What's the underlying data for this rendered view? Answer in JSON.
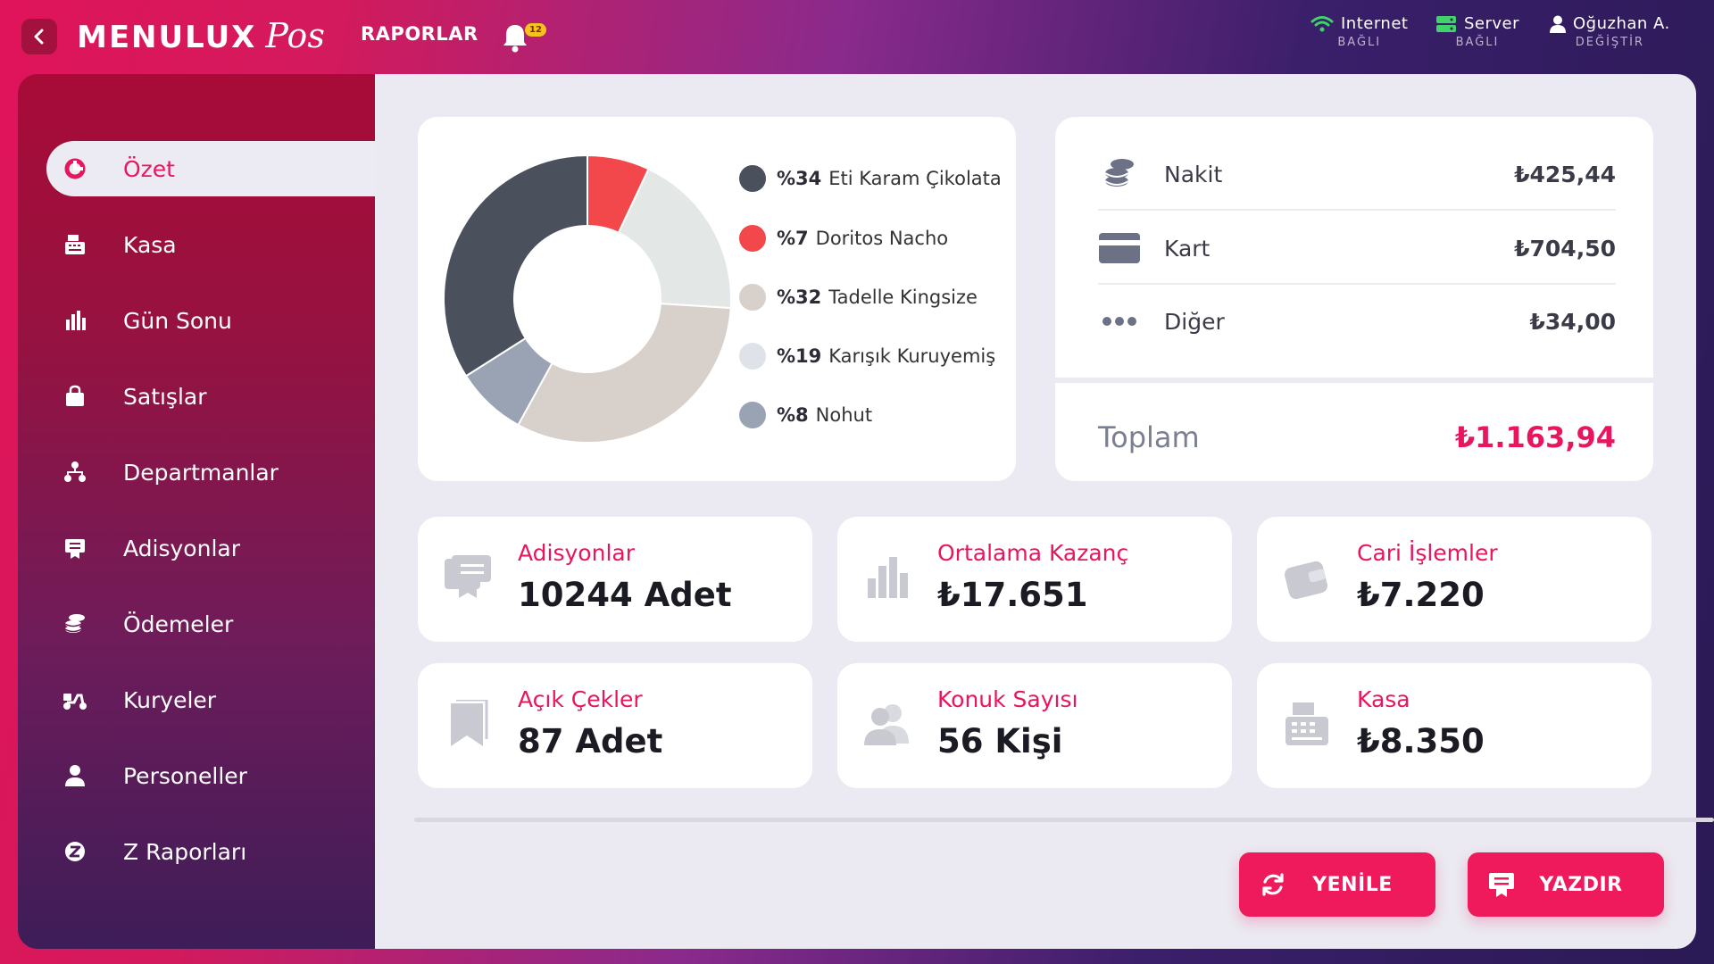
{
  "app": {
    "logo_main": "MENULUX",
    "logo_script": "Pos",
    "top_nav": "RAPORLAR",
    "notification_count": "12"
  },
  "status": {
    "internet": {
      "label": "Internet",
      "sub": "BAĞLI",
      "icon": "wifi-icon"
    },
    "server": {
      "label": "Server",
      "sub": "BAĞLI",
      "icon": "server-icon"
    },
    "user": {
      "label": "Oğuzhan A.",
      "sub": "DEĞİŞTİR",
      "icon": "user-icon"
    }
  },
  "sidebar": {
    "items": [
      {
        "label": "Özet",
        "icon": "pie-chart-icon",
        "active": true
      },
      {
        "label": "Kasa",
        "icon": "cash-register-icon"
      },
      {
        "label": "Gün Sonu",
        "icon": "bar-chart-icon"
      },
      {
        "label": "Satışlar",
        "icon": "shopping-bag-icon"
      },
      {
        "label": "Departmanlar",
        "icon": "sitemap-icon"
      },
      {
        "label": "Adisyonlar",
        "icon": "receipt-icon"
      },
      {
        "label": "Ödemeler",
        "icon": "coins-icon"
      },
      {
        "label": "Kuryeler",
        "icon": "scooter-icon"
      },
      {
        "label": "Personeller",
        "icon": "user-icon"
      },
      {
        "label": "Z Raporları",
        "icon": "z-report-icon"
      }
    ]
  },
  "chart_data": {
    "type": "pie",
    "categories": [
      "Eti Karam Çikolata",
      "Doritos Nacho",
      "Tadelle Kingsize",
      "Karışık Kuruyemiş",
      "Nohut"
    ],
    "values": [
      34,
      7,
      32,
      19,
      8
    ],
    "legend": [
      {
        "pct": "%34",
        "name": "Eti Karam Çikolata",
        "color": "#4a505c"
      },
      {
        "pct": "%7",
        "name": "Doritos Nacho",
        "color": "#f2474b"
      },
      {
        "pct": "%32",
        "name": "Tadelle Kingsize",
        "color": "#d7d0cb"
      },
      {
        "pct": "%19",
        "name": "Karışık Kuruyemiş",
        "color": "#dfe2e9"
      },
      {
        "pct": "%8",
        "name": "Nohut",
        "color": "#9aa3b4"
      }
    ],
    "slices_clockwise_from_top": [
      {
        "name": "Doritos Nacho",
        "value": 7,
        "color": "#f2474b"
      },
      {
        "name": "Karışık Kuruyemiş",
        "value": 19,
        "color": "#e3e7e6"
      },
      {
        "name": "Tadelle Kingsize",
        "value": 32,
        "color": "#d7d0cb"
      },
      {
        "name": "Nohut",
        "value": 8,
        "color": "#9aa3b4"
      },
      {
        "name": "Eti Karam Çikolata",
        "value": 34,
        "color": "#4a505c"
      }
    ],
    "donut": true,
    "legend_position": "right"
  },
  "payments": {
    "rows": [
      {
        "label": "Nakit",
        "value": "₺425,44",
        "icon": "coins-icon"
      },
      {
        "label": "Kart",
        "value": "₺704,50",
        "icon": "credit-card-icon"
      },
      {
        "label": "Diğer",
        "value": "₺34,00",
        "icon": "dots-icon"
      }
    ],
    "total_label": "Toplam",
    "total_value": "₺1.163,94"
  },
  "stats": [
    {
      "title": "Adisyonlar",
      "value": "10244 Adet",
      "icon": "receipt-icon"
    },
    {
      "title": "Ortalama Kazanç",
      "value": "₺17.651",
      "icon": "bar-chart-icon"
    },
    {
      "title": "Cari İşlemler",
      "value": "₺7.220",
      "icon": "wallet-icon"
    },
    {
      "title": "Açık Çekler",
      "value": "87 Adet",
      "icon": "bookmark-icon"
    },
    {
      "title": "Konuk Sayısı",
      "value": "56 Kişi",
      "icon": "users-icon"
    },
    {
      "title": "Kasa",
      "value": "₺8.350",
      "icon": "cash-register-icon"
    }
  ],
  "actions": {
    "refresh": "YENİLE",
    "print": "YAZDIR"
  },
  "colors": {
    "accent": "#e8155f",
    "sidebar_top": "#a80b38",
    "sidebar_bottom": "#3d1d58",
    "panel_bg": "#ebe9f1"
  }
}
